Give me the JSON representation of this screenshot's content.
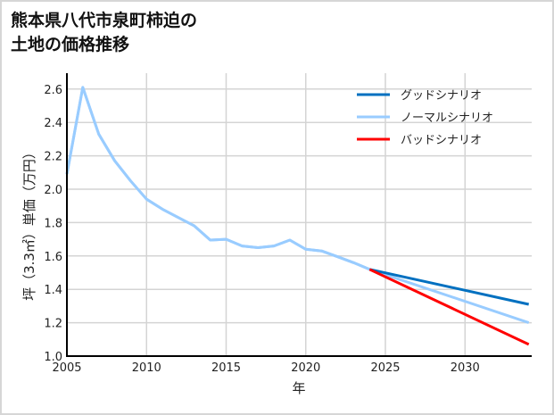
{
  "title_lines": [
    "熊本県八代市泉町柿迫の",
    "土地の価格推移"
  ],
  "chart_data": {
    "type": "line",
    "title": "熊本県八代市泉町柿迫の土地の価格推移",
    "xlabel": "年",
    "ylabel": "坪（3.3㎡）単価（万円）",
    "xlim": [
      2005,
      2034
    ],
    "ylim": [
      1.0,
      2.7
    ],
    "xticks": [
      2005,
      2010,
      2015,
      2020,
      2025,
      2030
    ],
    "yticks": [
      1.0,
      1.2,
      1.4,
      1.6,
      1.8,
      2.0,
      2.2,
      2.4,
      2.6
    ],
    "ytick_labels": [
      "1.0",
      "1.2",
      "1.4",
      "1.6",
      "1.8",
      "2.0",
      "2.2",
      "2.4",
      "2.6"
    ],
    "grid": true,
    "legend_position": "upper right",
    "series": [
      {
        "name": "グッドシナリオ",
        "color": "#0070c0",
        "x": [
          2024,
          2034
        ],
        "values": [
          1.52,
          1.31
        ]
      },
      {
        "name": "ノーマルシナリオ",
        "color": "#99ccff",
        "x": [
          2005,
          2006,
          2007,
          2008,
          2009,
          2010,
          2011,
          2012,
          2013,
          2014,
          2015,
          2016,
          2017,
          2018,
          2019,
          2020,
          2021,
          2022,
          2023,
          2024,
          2034
        ],
        "values": [
          2.09,
          2.61,
          2.33,
          2.17,
          2.05,
          1.94,
          1.88,
          1.83,
          1.78,
          1.695,
          1.7,
          1.66,
          1.65,
          1.66,
          1.695,
          1.64,
          1.63,
          1.595,
          1.56,
          1.52,
          1.2
        ]
      },
      {
        "name": "バッドシナリオ",
        "color": "#ff0000",
        "x": [
          2024,
          2034
        ],
        "values": [
          1.52,
          1.07
        ]
      }
    ]
  }
}
